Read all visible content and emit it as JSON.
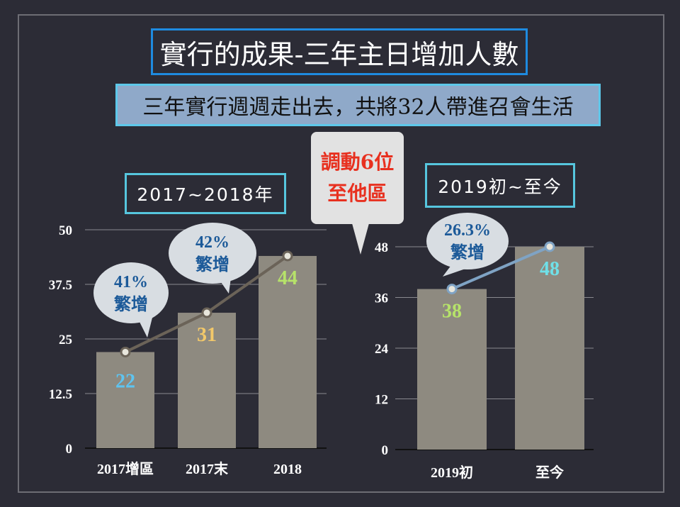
{
  "header": {
    "title": "實行的成果-三年主日增加人數",
    "subtitle": "三年實行週週走出去，共將32人帶進召會生活"
  },
  "callout": {
    "line1": "調動6位",
    "line2": "至他區",
    "color": "#e8301f"
  },
  "colors": {
    "bar": "#8e8a80",
    "left_line": "#6b6358",
    "right_line": "#7fa3c4",
    "bubble": "#d8dde2",
    "bubble_text": "#1c5a99"
  },
  "chart_data": [
    {
      "type": "bar",
      "title": "2017~2018年",
      "categories": [
        "2017增區",
        "2017末",
        "2018"
      ],
      "values": [
        22,
        31,
        44
      ],
      "ylim": [
        0,
        50
      ],
      "yticks": [
        "0",
        "12.5",
        "25",
        "37.5",
        "50"
      ],
      "grid": true,
      "value_label_colors": [
        "#5ec4f0",
        "#f2c86a",
        "#b6e26a"
      ],
      "line_overlay": true,
      "annotations": [
        {
          "pct": "41%",
          "text": "繁增"
        },
        {
          "pct": "42%",
          "text": "繁增"
        }
      ]
    },
    {
      "type": "bar",
      "title": "2019初~至今",
      "categories": [
        "2019初",
        "至今"
      ],
      "values": [
        38,
        48
      ],
      "ylim": [
        0,
        48
      ],
      "yticks": [
        "0",
        "12",
        "24",
        "36",
        "48"
      ],
      "grid": true,
      "value_label_colors": [
        "#b6e26a",
        "#6fe0e8"
      ],
      "line_overlay": true,
      "annotations": [
        {
          "pct": "26.3%",
          "text": "繁增"
        }
      ]
    }
  ]
}
